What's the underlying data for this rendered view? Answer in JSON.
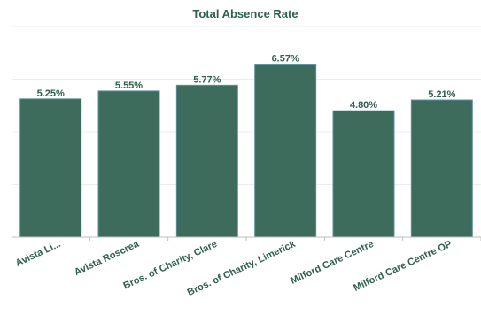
{
  "chart_data": {
    "type": "bar",
    "title": "Total Absence Rate",
    "categories": [
      "Avista Li...",
      "Avista Roscrea",
      "Bros. of Charity, Clare",
      "Bros. of Charity, Limerick",
      "Milford Care Centre",
      "Milford Care Centre OP"
    ],
    "values": [
      5.25,
      5.55,
      5.77,
      6.57,
      4.8,
      5.21
    ],
    "data_labels": [
      "5.25%",
      "5.55%",
      "5.77%",
      "6.57%",
      "4.80%",
      "5.21%"
    ],
    "ylim": [
      0,
      8
    ],
    "grid": true,
    "legend": "none",
    "xlabel": "",
    "ylabel": "",
    "colors": {
      "bar": "#3d6b5c",
      "bar_outline": "#5e8fa3",
      "text": "#2f5f4f",
      "grid": "#ececec",
      "axis": "#bfbfbf"
    }
  }
}
